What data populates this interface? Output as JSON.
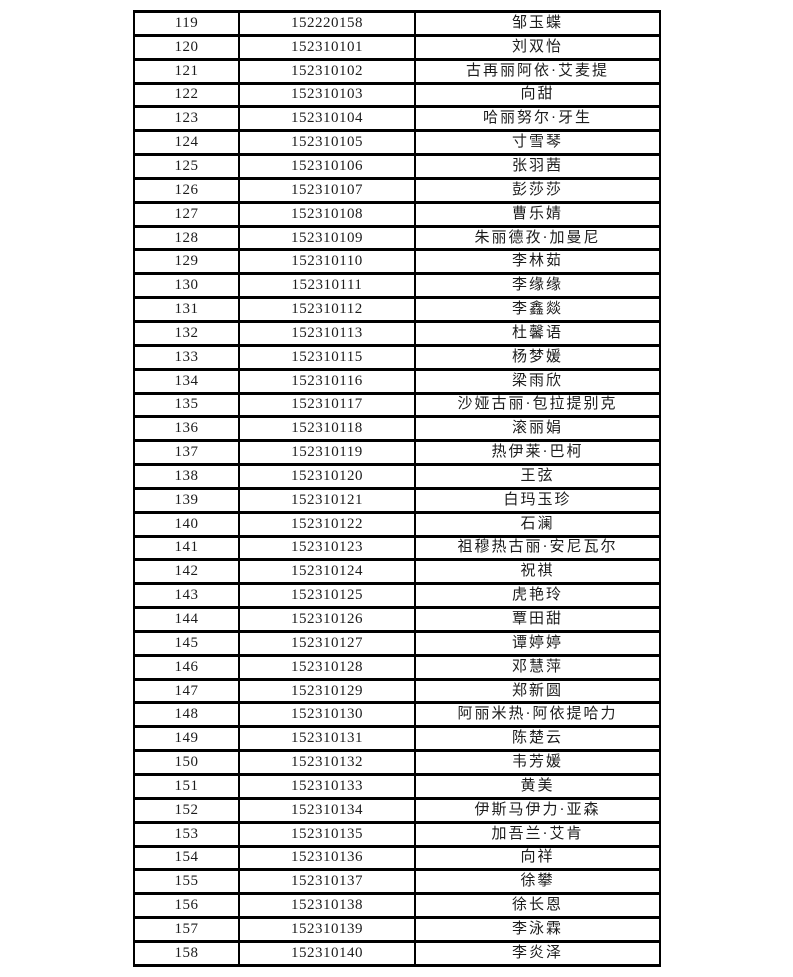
{
  "page": {
    "background_color": "#ffffff",
    "border_color": "#000000",
    "text_color": "#1c1c1c"
  },
  "table": {
    "columns": [
      "row-index",
      "student-id",
      "student-name"
    ],
    "rows": [
      [
        "119",
        "152220158",
        "邹玉蝶"
      ],
      [
        "120",
        "152310101",
        "刘双怡"
      ],
      [
        "121",
        "152310102",
        "古再丽阿依·艾麦提"
      ],
      [
        "122",
        "152310103",
        "向甜"
      ],
      [
        "123",
        "152310104",
        "哈丽努尔·牙生"
      ],
      [
        "124",
        "152310105",
        "寸雪琴"
      ],
      [
        "125",
        "152310106",
        "张羽茜"
      ],
      [
        "126",
        "152310107",
        "彭莎莎"
      ],
      [
        "127",
        "152310108",
        "曹乐婧"
      ],
      [
        "128",
        "152310109",
        "朱丽德孜·加曼尼"
      ],
      [
        "129",
        "152310110",
        "李林茹"
      ],
      [
        "130",
        "152310111",
        "李缘缘"
      ],
      [
        "131",
        "152310112",
        "李鑫燚"
      ],
      [
        "132",
        "152310113",
        "杜馨语"
      ],
      [
        "133",
        "152310115",
        "杨梦媛"
      ],
      [
        "134",
        "152310116",
        "梁雨欣"
      ],
      [
        "135",
        "152310117",
        "沙娅古丽·包拉提别克"
      ],
      [
        "136",
        "152310118",
        "滚丽娟"
      ],
      [
        "137",
        "152310119",
        "热伊莱·巴柯"
      ],
      [
        "138",
        "152310120",
        "王弦"
      ],
      [
        "139",
        "152310121",
        "白玛玉珍"
      ],
      [
        "140",
        "152310122",
        "石澜"
      ],
      [
        "141",
        "152310123",
        "祖穆热古丽·安尼瓦尔"
      ],
      [
        "142",
        "152310124",
        "祝祺"
      ],
      [
        "143",
        "152310125",
        "虎艳玲"
      ],
      [
        "144",
        "152310126",
        "覃田甜"
      ],
      [
        "145",
        "152310127",
        "谭婷婷"
      ],
      [
        "146",
        "152310128",
        "邓慧萍"
      ],
      [
        "147",
        "152310129",
        "郑新圆"
      ],
      [
        "148",
        "152310130",
        "阿丽米热·阿依提哈力"
      ],
      [
        "149",
        "152310131",
        "陈楚云"
      ],
      [
        "150",
        "152310132",
        "韦芳媛"
      ],
      [
        "151",
        "152310133",
        "黄美"
      ],
      [
        "152",
        "152310134",
        "伊斯马伊力·亚森"
      ],
      [
        "153",
        "152310135",
        "加吾兰·艾肯"
      ],
      [
        "154",
        "152310136",
        "向祥"
      ],
      [
        "155",
        "152310137",
        "徐攀"
      ],
      [
        "156",
        "152310138",
        "徐长恩"
      ],
      [
        "157",
        "152310139",
        "李泳霖"
      ],
      [
        "158",
        "152310140",
        "李炎泽"
      ]
    ]
  }
}
